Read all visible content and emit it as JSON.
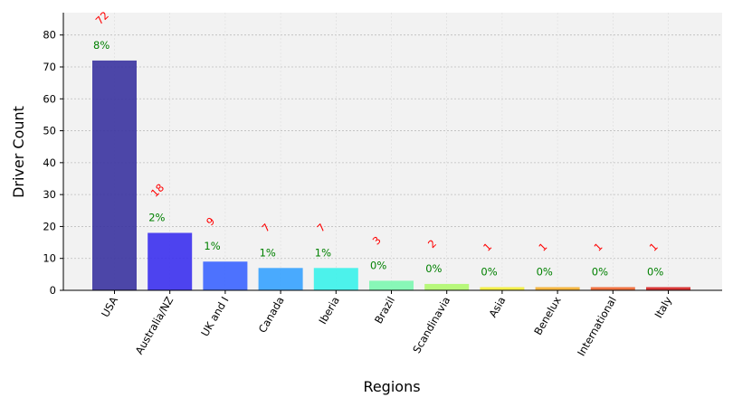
{
  "chart_data": {
    "type": "bar",
    "categories": [
      "USA",
      "Australia/NZ",
      "UK and I",
      "Canada",
      "Iberia",
      "Brazil",
      "Scandinavia",
      "Asia",
      "Benelux",
      "International",
      "Italy"
    ],
    "values": [
      72,
      18,
      9,
      7,
      7,
      3,
      2,
      1,
      1,
      1,
      1
    ],
    "percent_labels": [
      "8%",
      "2%",
      "1%",
      "1%",
      "1%",
      "0%",
      "0%",
      "0%",
      "0%",
      "0%",
      "0%"
    ],
    "bar_colors": [
      "#3a33a0",
      "#3b30ee",
      "#3b64ff",
      "#36a2ff",
      "#3af2ea",
      "#7cf7b0",
      "#b0f86e",
      "#f4f038",
      "#f5b030",
      "#ef6530",
      "#d62424"
    ],
    "count_label_color": "#ff0000",
    "percent_label_color": "#008000",
    "plot_background": "#f2f2f2",
    "xlabel": "Regions",
    "ylabel": "Driver Count",
    "yticks": [
      0,
      10,
      20,
      30,
      40,
      50,
      60,
      70,
      80
    ],
    "ylim": [
      0,
      87
    ],
    "grid": true
  }
}
